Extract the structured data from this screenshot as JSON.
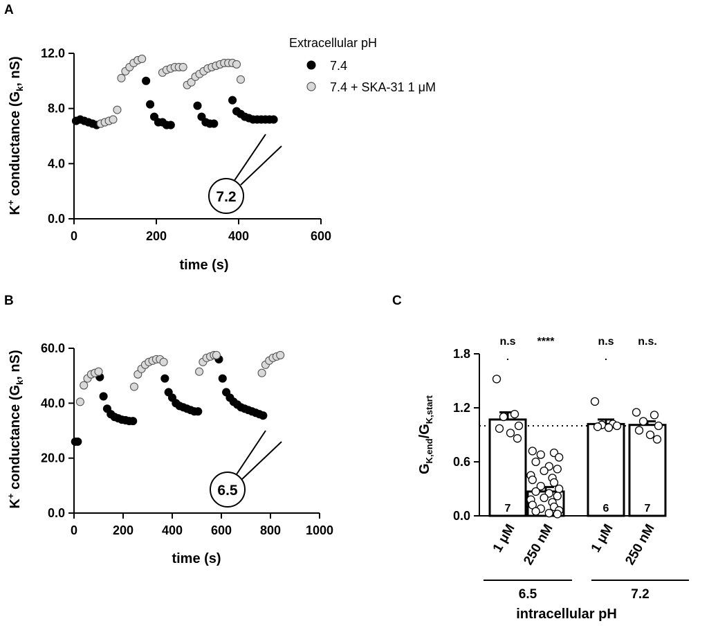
{
  "panels": {
    "A": {
      "letter": "A"
    },
    "B": {
      "letter": "B"
    },
    "C": {
      "letter": "C"
    }
  },
  "legend": {
    "title": "Extracellular pH",
    "black_label": "7.4",
    "grey_label": "7.4 + SKA-31 1 μM"
  },
  "colors": {
    "black_marker": "#000000",
    "grey_marker": "#d9d9d9",
    "axis": "#000000"
  },
  "chart_data": [
    {
      "panel": "A",
      "type": "scatter",
      "title": "",
      "xlabel": "time (s)",
      "ylabel_main": "K",
      "ylabel_sup": "+",
      "ylabel_mid": " conductance (G",
      "ylabel_sub": "k",
      "ylabel_end": ", nS)",
      "xlim": [
        0,
        600
      ],
      "ylim": [
        0,
        12
      ],
      "x_ticks": [
        0,
        200,
        400,
        600
      ],
      "x_tick_labels": [
        "0",
        "200",
        "400",
        "600"
      ],
      "y_ticks": [
        0,
        4,
        8,
        12
      ],
      "y_tick_labels": [
        "0.0",
        "4.0",
        "8.0",
        "12.0"
      ],
      "inset_label": "7.2",
      "series": [
        {
          "name": "7.4",
          "color": "black",
          "x": [
            5,
            15,
            25,
            35,
            45,
            55,
            175,
            185,
            195,
            205,
            215,
            225,
            235,
            300,
            310,
            320,
            330,
            340,
            385,
            395,
            405,
            415,
            425,
            435,
            445,
            455,
            465,
            475,
            485
          ],
          "y": [
            7.1,
            7.2,
            7.1,
            7.0,
            6.9,
            6.8,
            10.0,
            8.3,
            7.4,
            7.0,
            7.0,
            6.8,
            6.8,
            8.2,
            7.4,
            7.0,
            6.9,
            6.9,
            8.6,
            7.8,
            7.6,
            7.4,
            7.3,
            7.2,
            7.2,
            7.2,
            7.2,
            7.2,
            7.2
          ]
        },
        {
          "name": "7.4 + SKA-31 1 μM",
          "color": "grey",
          "x": [
            65,
            75,
            85,
            95,
            105,
            115,
            125,
            135,
            145,
            155,
            165,
            215,
            225,
            235,
            245,
            255,
            265,
            275,
            285,
            295,
            305,
            315,
            325,
            335,
            345,
            355,
            365,
            375,
            385,
            395,
            405
          ],
          "y": [
            6.9,
            7.0,
            7.1,
            7.2,
            7.9,
            10.2,
            10.7,
            11.0,
            11.3,
            11.5,
            11.6,
            10.6,
            10.8,
            10.9,
            11.0,
            11.0,
            11.0,
            9.7,
            9.9,
            10.3,
            10.5,
            10.7,
            10.9,
            11.0,
            11.1,
            11.2,
            11.3,
            11.3,
            11.3,
            11.2,
            10.1
          ]
        }
      ]
    },
    {
      "panel": "B",
      "type": "scatter",
      "title": "",
      "xlabel": "time (s)",
      "ylabel_main": "K",
      "ylabel_sup": "+",
      "ylabel_mid": " conductance (G",
      "ylabel_sub": "k",
      "ylabel_end": ", nS)",
      "xlim": [
        0,
        1000
      ],
      "ylim": [
        0,
        60
      ],
      "x_ticks": [
        0,
        200,
        400,
        600,
        800,
        1000
      ],
      "x_tick_labels": [
        "0",
        "200",
        "400",
        "600",
        "800",
        "1000"
      ],
      "y_ticks": [
        0,
        20,
        40,
        60
      ],
      "y_tick_labels": [
        "0.0",
        "20.0",
        "40.0",
        "60.0"
      ],
      "inset_label": "6.5",
      "series": [
        {
          "name": "7.4",
          "color": "black",
          "x": [
            5,
            15,
            105,
            120,
            135,
            150,
            165,
            180,
            195,
            210,
            225,
            240,
            370,
            385,
            400,
            415,
            430,
            445,
            460,
            475,
            490,
            505,
            590,
            605,
            620,
            635,
            650,
            665,
            680,
            695,
            710,
            725,
            740,
            755,
            770
          ],
          "y": [
            26.0,
            26.0,
            49.5,
            42.5,
            38.0,
            36.0,
            35.0,
            34.5,
            34.0,
            33.8,
            33.5,
            33.5,
            49.0,
            44.0,
            42.0,
            40.0,
            39.0,
            38.5,
            38.0,
            37.5,
            37.0,
            37.0,
            56.0,
            49.0,
            44.0,
            42.0,
            40.5,
            39.5,
            38.5,
            38.0,
            37.5,
            37.0,
            36.5,
            36.0,
            35.5
          ]
        },
        {
          "name": "7.4 + SKA-31 1 μM",
          "color": "grey",
          "x": [
            25,
            40,
            55,
            70,
            85,
            100,
            245,
            260,
            275,
            290,
            305,
            320,
            335,
            350,
            365,
            510,
            525,
            540,
            555,
            570,
            580,
            765,
            780,
            795,
            810,
            825,
            840
          ],
          "y": [
            40.5,
            46.5,
            49.0,
            50.5,
            51.0,
            51.5,
            46.0,
            50.5,
            52.5,
            54.0,
            55.0,
            55.5,
            56.0,
            56.0,
            55.0,
            51.5,
            55.0,
            56.5,
            57.0,
            57.5,
            57.5,
            51.0,
            54.0,
            55.5,
            56.5,
            57.0,
            57.5
          ]
        }
      ]
    },
    {
      "panel": "C",
      "type": "bar",
      "title": "",
      "xlabel": "intracellular pH",
      "ylabel_main": "G",
      "ylabel_sub1": "K,end",
      "ylabel_slash": "/G",
      "ylabel_sub2": "K,start",
      "ylim": [
        0,
        1.8
      ],
      "y_ticks": [
        0,
        0.6,
        1.2,
        1.8
      ],
      "y_tick_labels": [
        "0.0",
        "0.6",
        "1.2",
        "1.8"
      ],
      "reference_line": 1.0,
      "categories": [
        "1 μM",
        "250 nM",
        "1 μM",
        "250 nM"
      ],
      "groups": [
        {
          "label": "6.5",
          "bars": [
            0,
            1
          ]
        },
        {
          "label": "7.2",
          "bars": [
            2,
            3
          ]
        }
      ],
      "values": [
        1.07,
        0.27,
        1.02,
        1.01
      ],
      "errors": [
        0.08,
        0.05,
        0.05,
        0.04
      ],
      "n_labels": [
        "7",
        "",
        "6",
        "7"
      ],
      "significance": [
        "n.s",
        "****",
        "n.s",
        "n.s."
      ],
      "sig_dots": [
        ".",
        "",
        ".",
        ""
      ],
      "points": [
        [
          1.52,
          1.13,
          1.1,
          1.0,
          0.97,
          0.92,
          0.86
        ],
        [
          0.72,
          0.7,
          0.68,
          0.65,
          0.6,
          0.55,
          0.52,
          0.5,
          0.45,
          0.42,
          0.4,
          0.37,
          0.33,
          0.3,
          0.27,
          0.25,
          0.22,
          0.2,
          0.18,
          0.15,
          0.12,
          0.1,
          0.08,
          0.06,
          0.05,
          0.03,
          0.02
        ],
        [
          1.27,
          1.02,
          1.01,
          1.0,
          0.99,
          0.98
        ],
        [
          1.15,
          1.12,
          1.05,
          1.0,
          0.95,
          0.9,
          0.85
        ]
      ]
    }
  ]
}
